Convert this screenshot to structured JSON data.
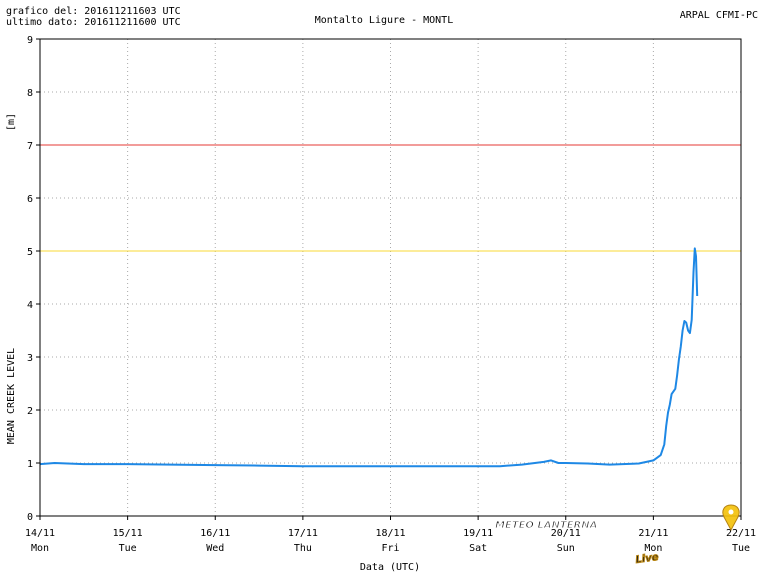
{
  "header": {
    "grafico_del": "grafico del: 201611211603 UTC",
    "ultimo_dato": "ultimo dato: 201611211600 UTC",
    "station": "Montalto Ligure - MONTL",
    "source": "ARPAL CFMI-PC"
  },
  "watermark": {
    "text_main": "METEO LANTERNA",
    "text_live": "Live"
  },
  "colors": {
    "series": "#1e88e5",
    "threshold_red": "#e53935",
    "threshold_yellow": "#f9d835",
    "grid": "#aaaaaa",
    "axis": "#000000"
  },
  "chart_data": {
    "type": "line",
    "title": "Montalto Ligure - MONTL",
    "xlabel": "Data (UTC)",
    "ylabel": "MEAN CREEK LEVEL",
    "yunit": "[m]",
    "ylim": [
      0,
      9
    ],
    "xlim": [
      "2016-11-14T00:00",
      "2016-11-22T00:00"
    ],
    "grid": true,
    "yticks": [
      0,
      1,
      2,
      3,
      4,
      5,
      6,
      7,
      8,
      9
    ],
    "xticks": [
      {
        "x": "2016-11-14T00:00",
        "date": "14/11",
        "day": "Mon"
      },
      {
        "x": "2016-11-15T00:00",
        "date": "15/11",
        "day": "Tue"
      },
      {
        "x": "2016-11-16T00:00",
        "date": "16/11",
        "day": "Wed"
      },
      {
        "x": "2016-11-17T00:00",
        "date": "17/11",
        "day": "Thu"
      },
      {
        "x": "2016-11-18T00:00",
        "date": "18/11",
        "day": "Fri"
      },
      {
        "x": "2016-11-19T00:00",
        "date": "19/11",
        "day": "Sat"
      },
      {
        "x": "2016-11-20T00:00",
        "date": "20/11",
        "day": "Sun"
      },
      {
        "x": "2016-11-21T00:00",
        "date": "21/11",
        "day": "Mon"
      },
      {
        "x": "2016-11-22T00:00",
        "date": "22/11",
        "day": "Tue"
      }
    ],
    "thresholds": [
      {
        "value": 7,
        "color": "#e53935"
      },
      {
        "value": 5,
        "color": "#f9d835"
      }
    ],
    "series": [
      {
        "color": "#1e88e5",
        "points": [
          [
            "2016-11-14T00:00",
            0.98
          ],
          [
            "2016-11-14T04:00",
            1.0
          ],
          [
            "2016-11-14T12:00",
            0.98
          ],
          [
            "2016-11-15T00:00",
            0.98
          ],
          [
            "2016-11-15T12:00",
            0.97
          ],
          [
            "2016-11-16T00:00",
            0.96
          ],
          [
            "2016-11-16T12:00",
            0.95
          ],
          [
            "2016-11-17T00:00",
            0.94
          ],
          [
            "2016-11-17T12:00",
            0.94
          ],
          [
            "2016-11-18T00:00",
            0.94
          ],
          [
            "2016-11-18T12:00",
            0.94
          ],
          [
            "2016-11-19T00:00",
            0.94
          ],
          [
            "2016-11-19T06:00",
            0.94
          ],
          [
            "2016-11-19T12:00",
            0.97
          ],
          [
            "2016-11-19T18:00",
            1.02
          ],
          [
            "2016-11-19T20:00",
            1.05
          ],
          [
            "2016-11-19T22:00",
            1.0
          ],
          [
            "2016-11-20T00:00",
            1.0
          ],
          [
            "2016-11-20T06:00",
            0.99
          ],
          [
            "2016-11-20T12:00",
            0.97
          ],
          [
            "2016-11-20T20:00",
            0.99
          ],
          [
            "2016-11-21T00:00",
            1.05
          ],
          [
            "2016-11-21T02:00",
            1.15
          ],
          [
            "2016-11-21T03:00",
            1.35
          ],
          [
            "2016-11-21T03:30",
            1.7
          ],
          [
            "2016-11-21T04:00",
            1.95
          ],
          [
            "2016-11-21T04:30",
            2.1
          ],
          [
            "2016-11-21T05:00",
            2.3
          ],
          [
            "2016-11-21T06:00",
            2.4
          ],
          [
            "2016-11-21T06:30",
            2.65
          ],
          [
            "2016-11-21T07:00",
            2.95
          ],
          [
            "2016-11-21T07:30",
            3.2
          ],
          [
            "2016-11-21T08:00",
            3.5
          ],
          [
            "2016-11-21T08:30",
            3.68
          ],
          [
            "2016-11-21T09:00",
            3.65
          ],
          [
            "2016-11-21T09:30",
            3.5
          ],
          [
            "2016-11-21T10:00",
            3.45
          ],
          [
            "2016-11-21T10:30",
            3.7
          ],
          [
            "2016-11-21T11:00",
            4.6
          ],
          [
            "2016-11-21T11:20",
            5.05
          ],
          [
            "2016-11-21T11:40",
            4.9
          ],
          [
            "2016-11-21T12:00",
            4.15
          ]
        ]
      }
    ]
  }
}
